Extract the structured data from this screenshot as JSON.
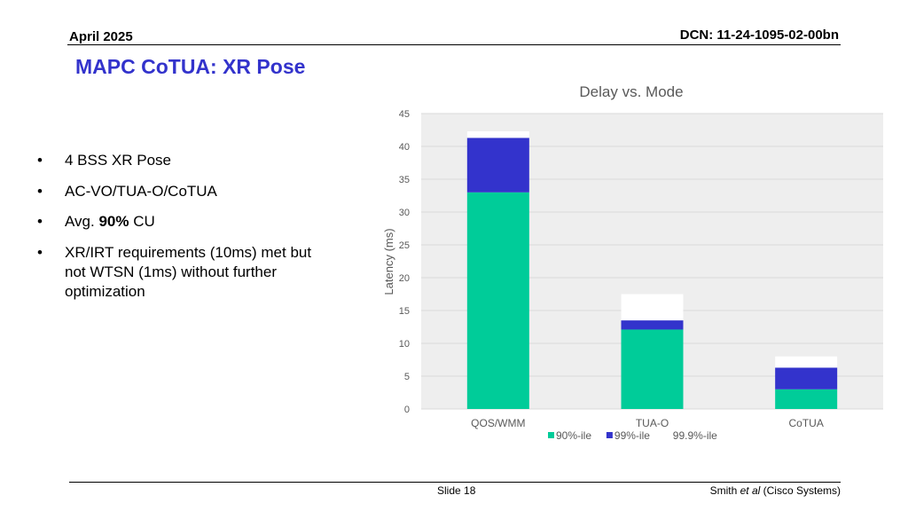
{
  "header": {
    "date": "April 2025",
    "dcn": "DCN: 11-24-1095-02-00bn"
  },
  "title": "MAPC CoTUA: XR Pose",
  "bullets": [
    {
      "text": "4 BSS XR Pose"
    },
    {
      "text": "AC-VO/TUA-O/CoTUA"
    },
    {
      "pre": "Avg. ",
      "bold": "90%",
      "post": " CU"
    },
    {
      "text": "XR/IRT requirements (10ms) met but not WTSN (1ms) without further optimization"
    }
  ],
  "bullet_glyph": "•",
  "chart_data": {
    "type": "bar",
    "stacked": true,
    "title": "Delay vs. Mode",
    "xlabel": "",
    "ylabel": "Latency (ms)",
    "ylim": [
      0,
      45
    ],
    "yticks": [
      0,
      5,
      10,
      15,
      20,
      25,
      30,
      35,
      40,
      45
    ],
    "categories": [
      "QOS/WMM",
      "TUA-O",
      "CoTUA"
    ],
    "series": [
      {
        "name": "90%-ile",
        "values": [
          33,
          12.1,
          3
        ],
        "color": "#00cc99"
      },
      {
        "name": "99%-ile",
        "values": [
          8.3,
          1.4,
          3.3
        ],
        "color": "#3333cc"
      },
      {
        "name": "99.9%-ile",
        "values": [
          1,
          4,
          1.7
        ],
        "color": "#ffffff"
      }
    ],
    "grid": true,
    "legend": "bottom",
    "plot_background": "#eeeeee"
  },
  "footer": {
    "slide": "Slide 18",
    "author_name": "Smith ",
    "author_etal": "et al",
    "author_org": " (Cisco Systems)"
  }
}
